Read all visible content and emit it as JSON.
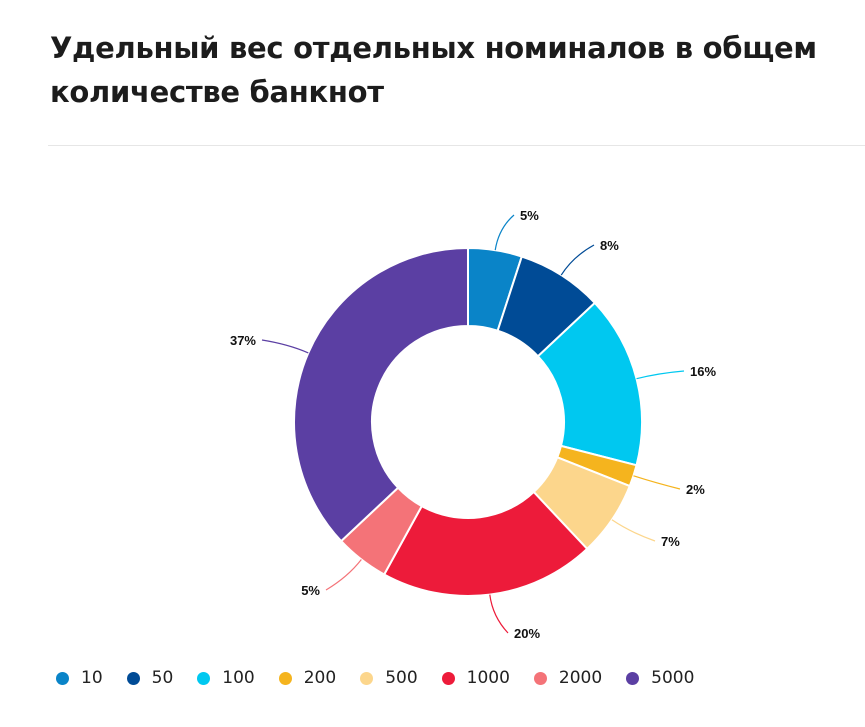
{
  "title": "Удельный вес отдельных номиналов в общем количестве банкнот",
  "chart_data": {
    "type": "pie",
    "donut": true,
    "legend_position": "bottom-left",
    "categories": [
      "10",
      "50",
      "100",
      "200",
      "500",
      "1000",
      "2000",
      "5000"
    ],
    "values": [
      5,
      8,
      16,
      2,
      7,
      20,
      5,
      37
    ],
    "value_labels": [
      "5%",
      "8%",
      "16%",
      "2%",
      "7%",
      "20%",
      "5%",
      "37%"
    ],
    "colors": [
      "#0a84c8",
      "#004b96",
      "#00c8f0",
      "#f5b41e",
      "#fcd68c",
      "#ed1b3a",
      "#f47378",
      "#5b3fa3"
    ]
  }
}
